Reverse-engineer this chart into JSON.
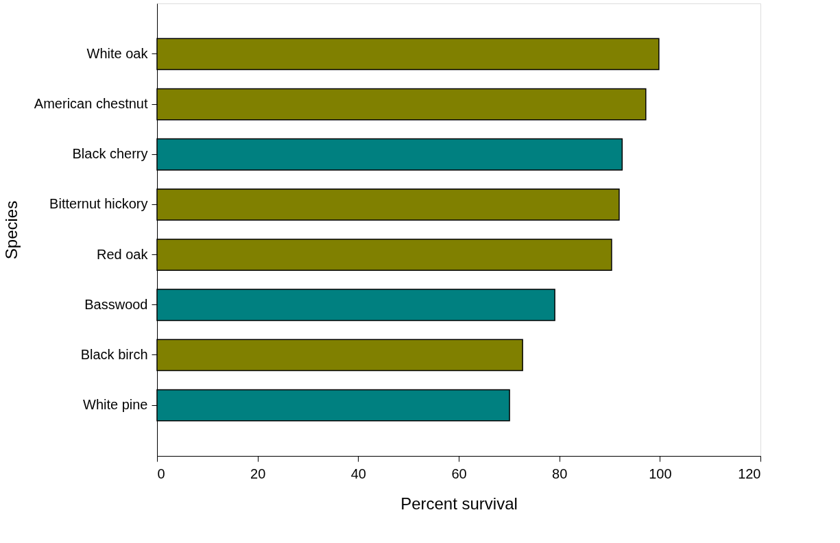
{
  "chart_data": {
    "type": "bar",
    "orientation": "horizontal",
    "xlabel": "Percent survival",
    "ylabel": "Species",
    "categories": [
      "White oak",
      "American chestnut",
      "Black cherry",
      "Bitternut hickory",
      "Red oak",
      "Basswood",
      "Black birch",
      "White pine"
    ],
    "values": [
      99.8,
      97.2,
      92.5,
      91.9,
      90.4,
      79.1,
      72.7,
      70.1
    ],
    "colors": [
      "#808000",
      "#808000",
      "#008080",
      "#808000",
      "#808000",
      "#008080",
      "#808000",
      "#008080"
    ],
    "xlim": [
      0,
      120
    ],
    "xticks": [
      0,
      20,
      40,
      60,
      80,
      100,
      120
    ]
  }
}
